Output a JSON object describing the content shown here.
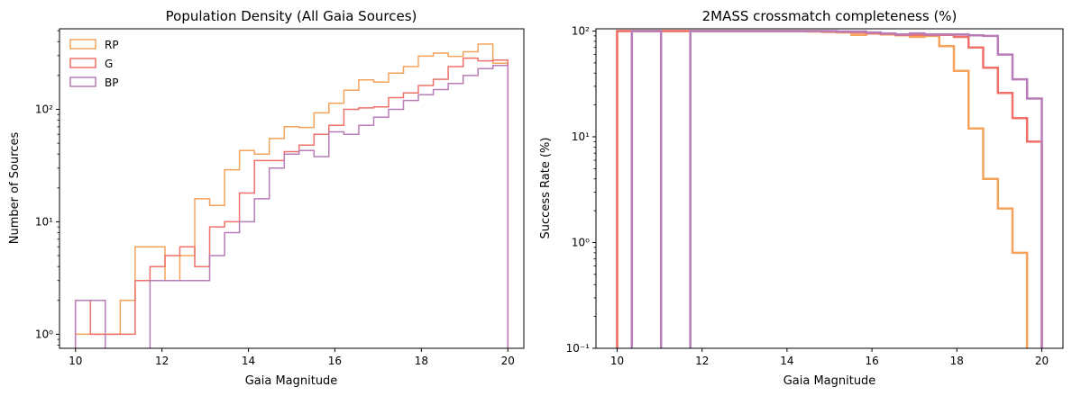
{
  "chart_data": [
    {
      "type": "histogram-step",
      "title": "Population Density (All Gaia Sources)",
      "xlabel": "Gaia Magnitude",
      "ylabel": "Number of Sources",
      "yscale": "log",
      "xlim": [
        9.63,
        20.37
      ],
      "ylim": [
        0.75,
        520
      ],
      "xticks": [
        10,
        12,
        14,
        16,
        18,
        20
      ],
      "yticks": [
        1,
        10,
        100
      ],
      "ytick_labels": [
        "10⁰",
        "10¹",
        "10²"
      ],
      "legend": {
        "placement": "upper-left",
        "frame": false
      },
      "bin_edges": [
        10.0,
        10.345,
        10.69,
        11.034,
        11.379,
        11.724,
        12.069,
        12.414,
        12.759,
        13.103,
        13.448,
        13.793,
        14.138,
        14.483,
        14.828,
        15.172,
        15.517,
        15.862,
        16.207,
        16.552,
        16.897,
        17.241,
        17.586,
        17.931,
        18.276,
        18.621,
        18.966,
        19.31,
        19.655,
        20.0
      ],
      "series": [
        {
          "name": "RP",
          "color": "#f5a35c",
          "values": [
            1,
            1,
            1,
            2,
            6,
            6,
            3,
            5,
            16,
            14,
            29,
            43,
            40,
            55,
            70,
            69,
            93,
            113,
            148,
            183,
            175,
            210,
            240,
            297,
            316,
            296,
            325,
            380,
            257
          ]
        },
        {
          "name": "G",
          "color": "#f0706a",
          "values": [
            2,
            1,
            1,
            1,
            3,
            4,
            5,
            6,
            4,
            9,
            10,
            18,
            35,
            35,
            42,
            48,
            60,
            72,
            100,
            103,
            105,
            127,
            140,
            163,
            185,
            240,
            285,
            270,
            274
          ]
        },
        {
          "name": "BP",
          "color": "#b87db7",
          "values": [
            2,
            2,
            0,
            0,
            0,
            3,
            3,
            3,
            3,
            5,
            8,
            10,
            16,
            30,
            40,
            43,
            38,
            63,
            60,
            72,
            85,
            100,
            120,
            135,
            150,
            170,
            200,
            230,
            245
          ]
        }
      ]
    },
    {
      "type": "histogram-step",
      "title": "2MASS crossmatch completeness (%)",
      "xlabel": "Gaia Magnitude",
      "ylabel": "Success Rate (%)",
      "yscale": "log",
      "xlim": [
        9.5,
        20.5
      ],
      "ylim": [
        0.1,
        105
      ],
      "xticks": [
        10,
        12,
        14,
        16,
        18,
        20
      ],
      "yticks": [
        0.1,
        1,
        10,
        100
      ],
      "ytick_labels": [
        "10⁻¹",
        "10⁰",
        "10¹",
        "10²"
      ],
      "bin_edges": [
        10.0,
        10.345,
        10.69,
        11.034,
        11.379,
        11.724,
        12.069,
        12.414,
        12.759,
        13.103,
        13.448,
        13.793,
        14.138,
        14.483,
        14.828,
        15.172,
        15.517,
        15.862,
        16.207,
        16.552,
        16.897,
        17.241,
        17.586,
        17.931,
        18.276,
        18.621,
        18.966,
        19.31,
        19.655,
        20.0
      ],
      "series": [
        {
          "name": "RP",
          "color": "#f5a35c",
          "values": [
            100,
            100,
            100,
            100,
            100,
            100,
            100,
            100,
            100,
            100,
            100,
            100,
            100,
            99,
            98,
            97,
            92,
            95,
            93,
            91,
            88,
            90,
            72,
            42,
            12,
            4,
            2.1,
            0.8,
            0.01
          ]
        },
        {
          "name": "G",
          "color": "#f0706a",
          "values": [
            100,
            100,
            100,
            100,
            100,
            100,
            100,
            100,
            100,
            100,
            100,
            100,
            100,
            100,
            99,
            98,
            97,
            95,
            94,
            92,
            92,
            92,
            92,
            88,
            70,
            45,
            26,
            15,
            9
          ]
        },
        {
          "name": "BP",
          "color": "#b87db7",
          "values": [
            0.01,
            100,
            100,
            0.01,
            0.01,
            100,
            100,
            100,
            100,
            100,
            100,
            100,
            100,
            100,
            100,
            99,
            99,
            97,
            95,
            93,
            95,
            93,
            93,
            93,
            91,
            90,
            60,
            35,
            23
          ]
        }
      ]
    }
  ]
}
